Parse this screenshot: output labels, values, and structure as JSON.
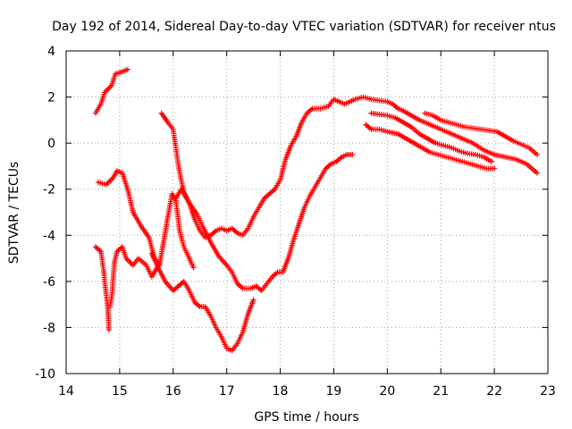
{
  "chart_data": {
    "type": "scatter",
    "title": "Day 192 of 2014, Sidereal Day-to-day VTEC variation (SDTVAR) for receiver ntus",
    "xlabel": "GPS time / hours",
    "ylabel": "SDTVAR / TECUs",
    "xlim": [
      14,
      23
    ],
    "ylim": [
      -10,
      4
    ],
    "xticks": [
      "14",
      "15",
      "16",
      "17",
      "18",
      "19",
      "20",
      "21",
      "22",
      "23"
    ],
    "yticks": [
      "-10",
      "-8",
      "-6",
      "-4",
      "-2",
      "0",
      "2",
      "4"
    ],
    "grid": true,
    "marker": "+",
    "color": "#ff0000",
    "series": [
      {
        "name": "s1",
        "points": [
          [
            14.55,
            1.3
          ],
          [
            14.65,
            1.7
          ],
          [
            14.72,
            2.2
          ],
          [
            14.85,
            2.5
          ],
          [
            14.92,
            3.0
          ],
          [
            15.05,
            3.1
          ],
          [
            15.15,
            3.2
          ]
        ]
      },
      {
        "name": "s2",
        "points": [
          [
            14.6,
            -1.7
          ],
          [
            14.75,
            -1.8
          ],
          [
            14.88,
            -1.5
          ],
          [
            14.95,
            -1.2
          ],
          [
            15.05,
            -1.3
          ],
          [
            15.15,
            -2.0
          ],
          [
            15.25,
            -3.0
          ],
          [
            15.4,
            -3.6
          ],
          [
            15.55,
            -4.1
          ],
          [
            15.65,
            -5.0
          ],
          [
            15.75,
            -5.3
          ]
        ]
      },
      {
        "name": "s3",
        "points": [
          [
            14.55,
            -4.5
          ],
          [
            14.65,
            -4.7
          ],
          [
            14.7,
            -5.5
          ],
          [
            14.72,
            -6.0
          ],
          [
            14.75,
            -6.6
          ],
          [
            14.78,
            -7.2
          ],
          [
            14.8,
            -8.1
          ]
        ]
      },
      {
        "name": "s4",
        "points": [
          [
            14.82,
            -7.1
          ],
          [
            14.86,
            -6.5
          ],
          [
            14.9,
            -5.2
          ],
          [
            14.95,
            -4.7
          ],
          [
            15.05,
            -4.5
          ],
          [
            15.12,
            -5.0
          ],
          [
            15.25,
            -5.3
          ],
          [
            15.35,
            -5.0
          ],
          [
            15.5,
            -5.3
          ],
          [
            15.6,
            -5.8
          ],
          [
            15.75,
            -5.2
          ],
          [
            15.82,
            -4.3
          ],
          [
            15.9,
            -3.2
          ],
          [
            15.98,
            -2.2
          ],
          [
            16.05,
            -2.5
          ],
          [
            16.12,
            -3.8
          ],
          [
            16.2,
            -4.5
          ],
          [
            16.3,
            -5.0
          ],
          [
            16.38,
            -5.4
          ]
        ]
      },
      {
        "name": "s5",
        "points": [
          [
            15.6,
            -4.8
          ],
          [
            15.72,
            -5.4
          ],
          [
            15.85,
            -6.0
          ],
          [
            16.0,
            -6.4
          ],
          [
            16.1,
            -6.2
          ],
          [
            16.2,
            -6.0
          ],
          [
            16.3,
            -6.4
          ],
          [
            16.4,
            -6.9
          ],
          [
            16.5,
            -7.1
          ],
          [
            16.6,
            -7.1
          ],
          [
            16.7,
            -7.5
          ],
          [
            16.8,
            -8.0
          ],
          [
            16.9,
            -8.4
          ],
          [
            17.0,
            -8.9
          ],
          [
            17.1,
            -9.0
          ],
          [
            17.2,
            -8.7
          ],
          [
            17.3,
            -8.2
          ],
          [
            17.4,
            -7.4
          ],
          [
            17.5,
            -6.8
          ]
        ]
      },
      {
        "name": "s6",
        "points": [
          [
            15.78,
            1.3
          ],
          [
            15.9,
            0.9
          ],
          [
            16.0,
            0.6
          ],
          [
            16.05,
            -0.2
          ],
          [
            16.1,
            -1.0
          ],
          [
            16.15,
            -1.6
          ],
          [
            16.2,
            -2.1
          ],
          [
            16.3,
            -2.6
          ],
          [
            16.4,
            -3.3
          ],
          [
            16.5,
            -3.8
          ],
          [
            16.6,
            -4.1
          ],
          [
            16.7,
            -4.0
          ],
          [
            16.8,
            -3.8
          ],
          [
            16.9,
            -3.7
          ],
          [
            17.0,
            -3.8
          ],
          [
            17.1,
            -3.7
          ],
          [
            17.2,
            -3.9
          ],
          [
            17.3,
            -4.0
          ],
          [
            17.4,
            -3.7
          ],
          [
            17.5,
            -3.2
          ],
          [
            17.6,
            -2.8
          ],
          [
            17.7,
            -2.4
          ],
          [
            17.8,
            -2.2
          ],
          [
            17.9,
            -2.0
          ],
          [
            18.0,
            -1.6
          ],
          [
            18.1,
            -0.7
          ],
          [
            18.2,
            -0.1
          ],
          [
            18.3,
            0.3
          ],
          [
            18.4,
            0.9
          ],
          [
            18.5,
            1.3
          ],
          [
            18.6,
            1.5
          ],
          [
            18.75,
            1.5
          ],
          [
            18.9,
            1.6
          ],
          [
            19.0,
            1.9
          ],
          [
            19.2,
            1.7
          ],
          [
            19.4,
            1.9
          ],
          [
            19.55,
            2.0
          ],
          [
            19.7,
            1.9
          ],
          [
            19.85,
            1.85
          ],
          [
            20.0,
            1.8
          ],
          [
            20.1,
            1.7
          ],
          [
            20.2,
            1.5
          ],
          [
            20.3,
            1.4
          ],
          [
            20.45,
            1.2
          ],
          [
            20.6,
            1.0
          ],
          [
            20.8,
            0.8
          ],
          [
            21.0,
            0.6
          ],
          [
            21.2,
            0.4
          ],
          [
            21.4,
            0.2
          ],
          [
            21.6,
            0.0
          ],
          [
            21.8,
            -0.3
          ],
          [
            22.0,
            -0.5
          ],
          [
            22.2,
            -0.6
          ],
          [
            22.4,
            -0.7
          ],
          [
            22.6,
            -0.9
          ],
          [
            22.8,
            -1.3
          ]
        ]
      },
      {
        "name": "s7",
        "points": [
          [
            16.05,
            -2.4
          ],
          [
            16.15,
            -2.0
          ],
          [
            16.3,
            -2.6
          ],
          [
            16.45,
            -3.1
          ],
          [
            16.55,
            -3.6
          ],
          [
            16.7,
            -4.3
          ],
          [
            16.85,
            -4.9
          ],
          [
            17.0,
            -5.3
          ],
          [
            17.1,
            -5.6
          ],
          [
            17.2,
            -6.1
          ],
          [
            17.3,
            -6.3
          ],
          [
            17.45,
            -6.3
          ],
          [
            17.55,
            -6.2
          ],
          [
            17.65,
            -6.4
          ],
          [
            17.75,
            -6.1
          ],
          [
            17.85,
            -5.8
          ],
          [
            17.95,
            -5.6
          ],
          [
            18.05,
            -5.6
          ],
          [
            18.15,
            -5.0
          ],
          [
            18.25,
            -4.2
          ],
          [
            18.35,
            -3.5
          ],
          [
            18.45,
            -2.8
          ],
          [
            18.55,
            -2.3
          ],
          [
            18.65,
            -1.9
          ],
          [
            18.75,
            -1.5
          ],
          [
            18.85,
            -1.1
          ],
          [
            18.95,
            -0.9
          ],
          [
            19.05,
            -0.8
          ],
          [
            19.15,
            -0.6
          ],
          [
            19.25,
            -0.5
          ],
          [
            19.35,
            -0.5
          ]
        ]
      },
      {
        "name": "s8",
        "points": [
          [
            19.6,
            0.8
          ],
          [
            19.7,
            0.6
          ],
          [
            19.85,
            0.6
          ],
          [
            20.0,
            0.5
          ],
          [
            20.2,
            0.4
          ],
          [
            20.35,
            0.2
          ],
          [
            20.5,
            0.0
          ],
          [
            20.65,
            -0.2
          ],
          [
            20.8,
            -0.4
          ],
          [
            20.95,
            -0.5
          ],
          [
            21.1,
            -0.6
          ],
          [
            21.25,
            -0.7
          ],
          [
            21.4,
            -0.8
          ],
          [
            21.55,
            -0.9
          ],
          [
            21.7,
            -1.0
          ],
          [
            21.85,
            -1.1
          ],
          [
            22.0,
            -1.1
          ]
        ]
      },
      {
        "name": "s9",
        "points": [
          [
            19.7,
            1.3
          ],
          [
            19.85,
            1.25
          ],
          [
            20.0,
            1.2
          ],
          [
            20.15,
            1.1
          ],
          [
            20.3,
            0.9
          ],
          [
            20.45,
            0.7
          ],
          [
            20.6,
            0.4
          ],
          [
            20.75,
            0.2
          ],
          [
            20.9,
            0.0
          ],
          [
            21.05,
            -0.1
          ],
          [
            21.2,
            -0.2
          ],
          [
            21.35,
            -0.35
          ],
          [
            21.5,
            -0.45
          ],
          [
            21.65,
            -0.5
          ],
          [
            21.8,
            -0.6
          ],
          [
            21.95,
            -0.8
          ]
        ]
      },
      {
        "name": "s10",
        "points": [
          [
            20.7,
            1.3
          ],
          [
            20.85,
            1.2
          ],
          [
            21.0,
            1.0
          ],
          [
            21.15,
            0.9
          ],
          [
            21.3,
            0.8
          ],
          [
            21.45,
            0.7
          ],
          [
            21.6,
            0.65
          ],
          [
            21.75,
            0.6
          ],
          [
            21.9,
            0.55
          ],
          [
            22.05,
            0.5
          ],
          [
            22.2,
            0.3
          ],
          [
            22.35,
            0.1
          ],
          [
            22.5,
            -0.05
          ],
          [
            22.65,
            -0.2
          ],
          [
            22.8,
            -0.5
          ]
        ]
      }
    ]
  }
}
